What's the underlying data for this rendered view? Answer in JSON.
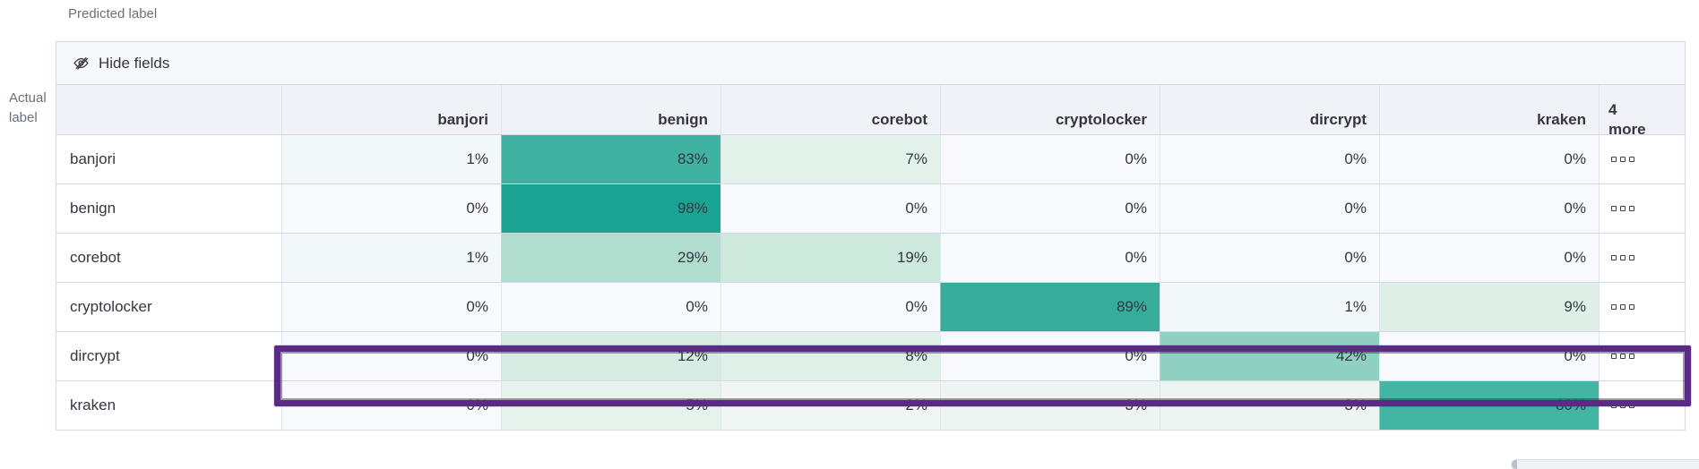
{
  "labels": {
    "predicted_axis": "Predicted label",
    "actual_axis": "Actual label"
  },
  "toolbar": {
    "hide_fields": "Hide fields"
  },
  "chart_data": {
    "type": "heatmap",
    "x_axis_label": "Predicted label",
    "y_axis_label": "Actual label",
    "columns": [
      "banjori",
      "benign",
      "corebot",
      "cryptolocker",
      "dircrypt",
      "kraken"
    ],
    "more_columns_label": "4 more",
    "rows": [
      "banjori",
      "benign",
      "corebot",
      "cryptolocker",
      "dircrypt",
      "kraken"
    ],
    "unit": "%",
    "values_percent": [
      [
        1,
        83,
        7,
        0,
        0,
        0
      ],
      [
        0,
        98,
        0,
        0,
        0,
        0
      ],
      [
        1,
        29,
        19,
        0,
        0,
        0
      ],
      [
        0,
        0,
        0,
        89,
        1,
        9
      ],
      [
        0,
        12,
        8,
        0,
        42,
        0
      ],
      [
        0,
        5,
        2,
        3,
        3,
        80
      ]
    ],
    "cell_colors": [
      [
        "#f2f7f7",
        "#40b2a1",
        "#e2f1ea",
        "#f7f9fc",
        "#f7f9fc",
        "#f7f9fc"
      ],
      [
        "#f7f9fc",
        "#1aa392",
        "#f7f9fc",
        "#f7f9fc",
        "#f7f9fc",
        "#f7f9fc"
      ],
      [
        "#f2f7f7",
        "#b0ddce",
        "#cde8dc",
        "#f7f9fc",
        "#f7f9fc",
        "#f7f9fc"
      ],
      [
        "#f7f9fc",
        "#f7f9fc",
        "#f7f9fc",
        "#36ad9b",
        "#f2f7f7",
        "#ddefe7"
      ],
      [
        "#f7f9fc",
        "#d7ece2",
        "#dff0e8",
        "#f7f9fc",
        "#8ed1c0",
        "#f7f9fc"
      ],
      [
        "#f7f9fc",
        "#e6f3ed",
        "#eff6f4",
        "#ecf5f1",
        "#ecf5f1",
        "#45b5a3"
      ]
    ],
    "heat_max_color": "#1aa392",
    "highlighted_row": "dircrypt",
    "highlight_color": "#5b2a84"
  }
}
